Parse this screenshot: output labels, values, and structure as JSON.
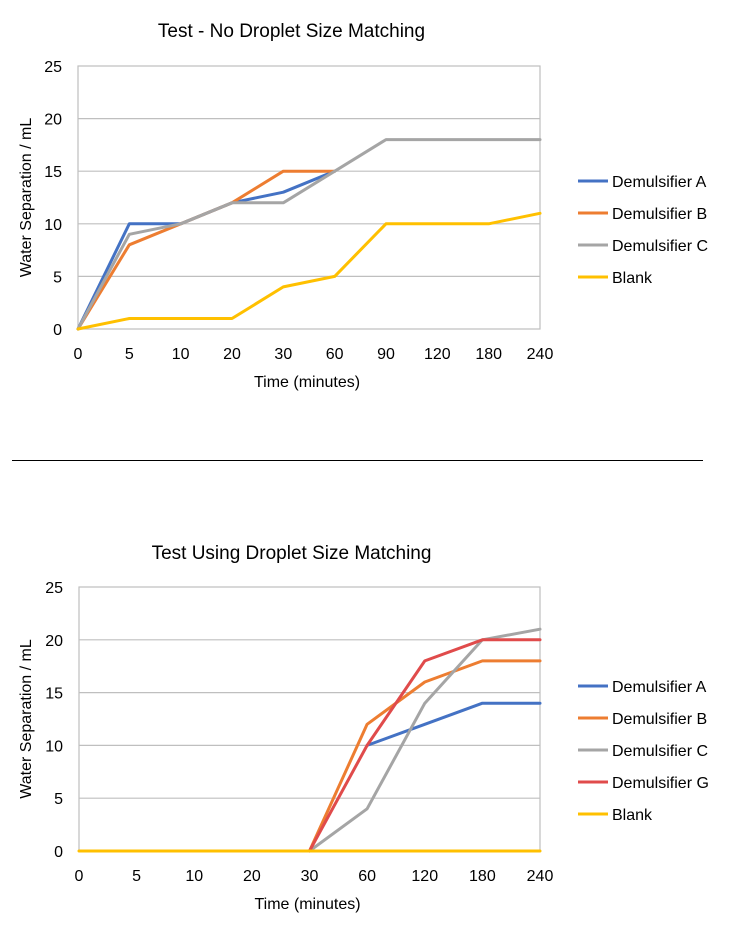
{
  "chart_data": [
    {
      "type": "line",
      "title": "Test - No Droplet  Size Matching",
      "xlabel": "Time (minutes)",
      "ylabel": "Water Separation / mL",
      "categories": [
        "0",
        "5",
        "10",
        "20",
        "30",
        "60",
        "90",
        "120",
        "180",
        "240"
      ],
      "ylim": [
        0,
        25
      ],
      "yticks": [
        "0",
        "5",
        "10",
        "15",
        "20",
        "25"
      ],
      "grid": true,
      "legend_position": "right",
      "series": [
        {
          "name": "Demulsifier A",
          "color": "#4472C4",
          "values": [
            0,
            10,
            10,
            12,
            13,
            15,
            null,
            null,
            null,
            null
          ]
        },
        {
          "name": "Demulsifier B",
          "color": "#ED7D31",
          "values": [
            0,
            8,
            10,
            12,
            15,
            15,
            null,
            null,
            null,
            null
          ]
        },
        {
          "name": "Demulsifier C",
          "color": "#A5A5A5",
          "values": [
            0,
            9,
            10,
            12,
            12,
            15,
            18,
            18,
            18,
            18
          ]
        },
        {
          "name": "Blank",
          "color": "#FFC000",
          "values": [
            0,
            1,
            1,
            1,
            4,
            5,
            10,
            10,
            10,
            11
          ]
        }
      ]
    },
    {
      "type": "line",
      "title": "Test Using  Droplet  Size Matching",
      "xlabel": "Time (minutes)",
      "ylabel": "Water Separation / mL",
      "categories": [
        "0",
        "5",
        "10",
        "20",
        "30",
        "60",
        "120",
        "180",
        "240"
      ],
      "ylim": [
        0,
        25
      ],
      "yticks": [
        "0",
        "5",
        "10",
        "15",
        "20",
        "25"
      ],
      "grid": true,
      "legend_position": "right",
      "series": [
        {
          "name": "Demulsifier A",
          "color": "#4472C4",
          "values": [
            null,
            null,
            null,
            null,
            null,
            10,
            12,
            14,
            14
          ]
        },
        {
          "name": "Demulsifier B",
          "color": "#ED7D31",
          "values": [
            null,
            null,
            null,
            null,
            0,
            12,
            16,
            18,
            18
          ]
        },
        {
          "name": "Demulsifier C",
          "color": "#A5A5A5",
          "values": [
            null,
            null,
            null,
            null,
            0,
            4,
            14,
            20,
            21
          ]
        },
        {
          "name": "Demulsifier G",
          "color": "#E04B4B",
          "values": [
            null,
            null,
            null,
            null,
            0,
            10,
            18,
            20,
            20
          ]
        },
        {
          "name": "Blank",
          "color": "#FFC000",
          "values": [
            0,
            0,
            0,
            0,
            0,
            0,
            0,
            0,
            0
          ]
        }
      ]
    }
  ]
}
